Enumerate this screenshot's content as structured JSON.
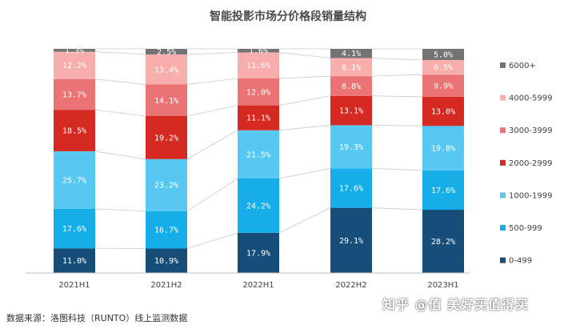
{
  "chart_data": {
    "type": "bar",
    "stacked": true,
    "title": "智能投影市场分价格段销量结构",
    "categories": [
      "2021H1",
      "2021H2",
      "2022H1",
      "2022H2",
      "2023H1"
    ],
    "series": [
      {
        "name": "0-499",
        "color": "#174e79",
        "values": [
          11.0,
          10.9,
          17.9,
          29.1,
          28.2
        ],
        "labels": [
          "11.0%",
          "10.9%",
          "17.9%",
          "29.1%",
          "28.2%"
        ]
      },
      {
        "name": "500-999",
        "color": "#16aee8",
        "values": [
          17.6,
          16.7,
          24.2,
          17.6,
          17.6
        ],
        "labels": [
          "17.6%",
          "16.7%",
          "24.2%",
          "17.6%",
          "17.6%"
        ]
      },
      {
        "name": "1000-1999",
        "color": "#57c8f2",
        "values": [
          25.7,
          23.2,
          21.5,
          19.3,
          19.8
        ],
        "labels": [
          "25.7%",
          "23.2%",
          "21.5%",
          "19.3%",
          "19.8%"
        ]
      },
      {
        "name": "2000-2999",
        "color": "#d42a22",
        "values": [
          18.5,
          19.2,
          11.1,
          13.1,
          13.0
        ],
        "labels": [
          "18.5%",
          "19.2%",
          "11.1%",
          "13.1%",
          "13.0%"
        ]
      },
      {
        "name": "3000-3999",
        "color": "#ea7473",
        "values": [
          13.7,
          14.1,
          12.0,
          8.8,
          9.9
        ],
        "labels": [
          "13.7%",
          "14.1%",
          "12.0%",
          "8.8%",
          "9.9%"
        ]
      },
      {
        "name": "4000-5999",
        "color": "#f7aeac",
        "values": [
          12.2,
          13.4,
          11.6,
          8.1,
          6.5
        ],
        "labels": [
          "12.2%",
          "13.4%",
          "11.6%",
          "8.1%",
          "6.5%"
        ]
      },
      {
        "name": "6000+",
        "color": "#737373",
        "values": [
          1.3,
          2.5,
          1.6,
          4.1,
          5.0
        ],
        "labels": [
          "1.3%",
          "2.5%",
          "1.6%",
          "4.1%",
          "5.0%"
        ]
      }
    ],
    "ylim": [
      0,
      100
    ],
    "legend_position": "right",
    "grid": false,
    "connector_lines": true
  },
  "source_note": "数据来源：洛图科技（RUNTO）线上监测数据",
  "watermark": "知乎 @值 美好买值得买"
}
